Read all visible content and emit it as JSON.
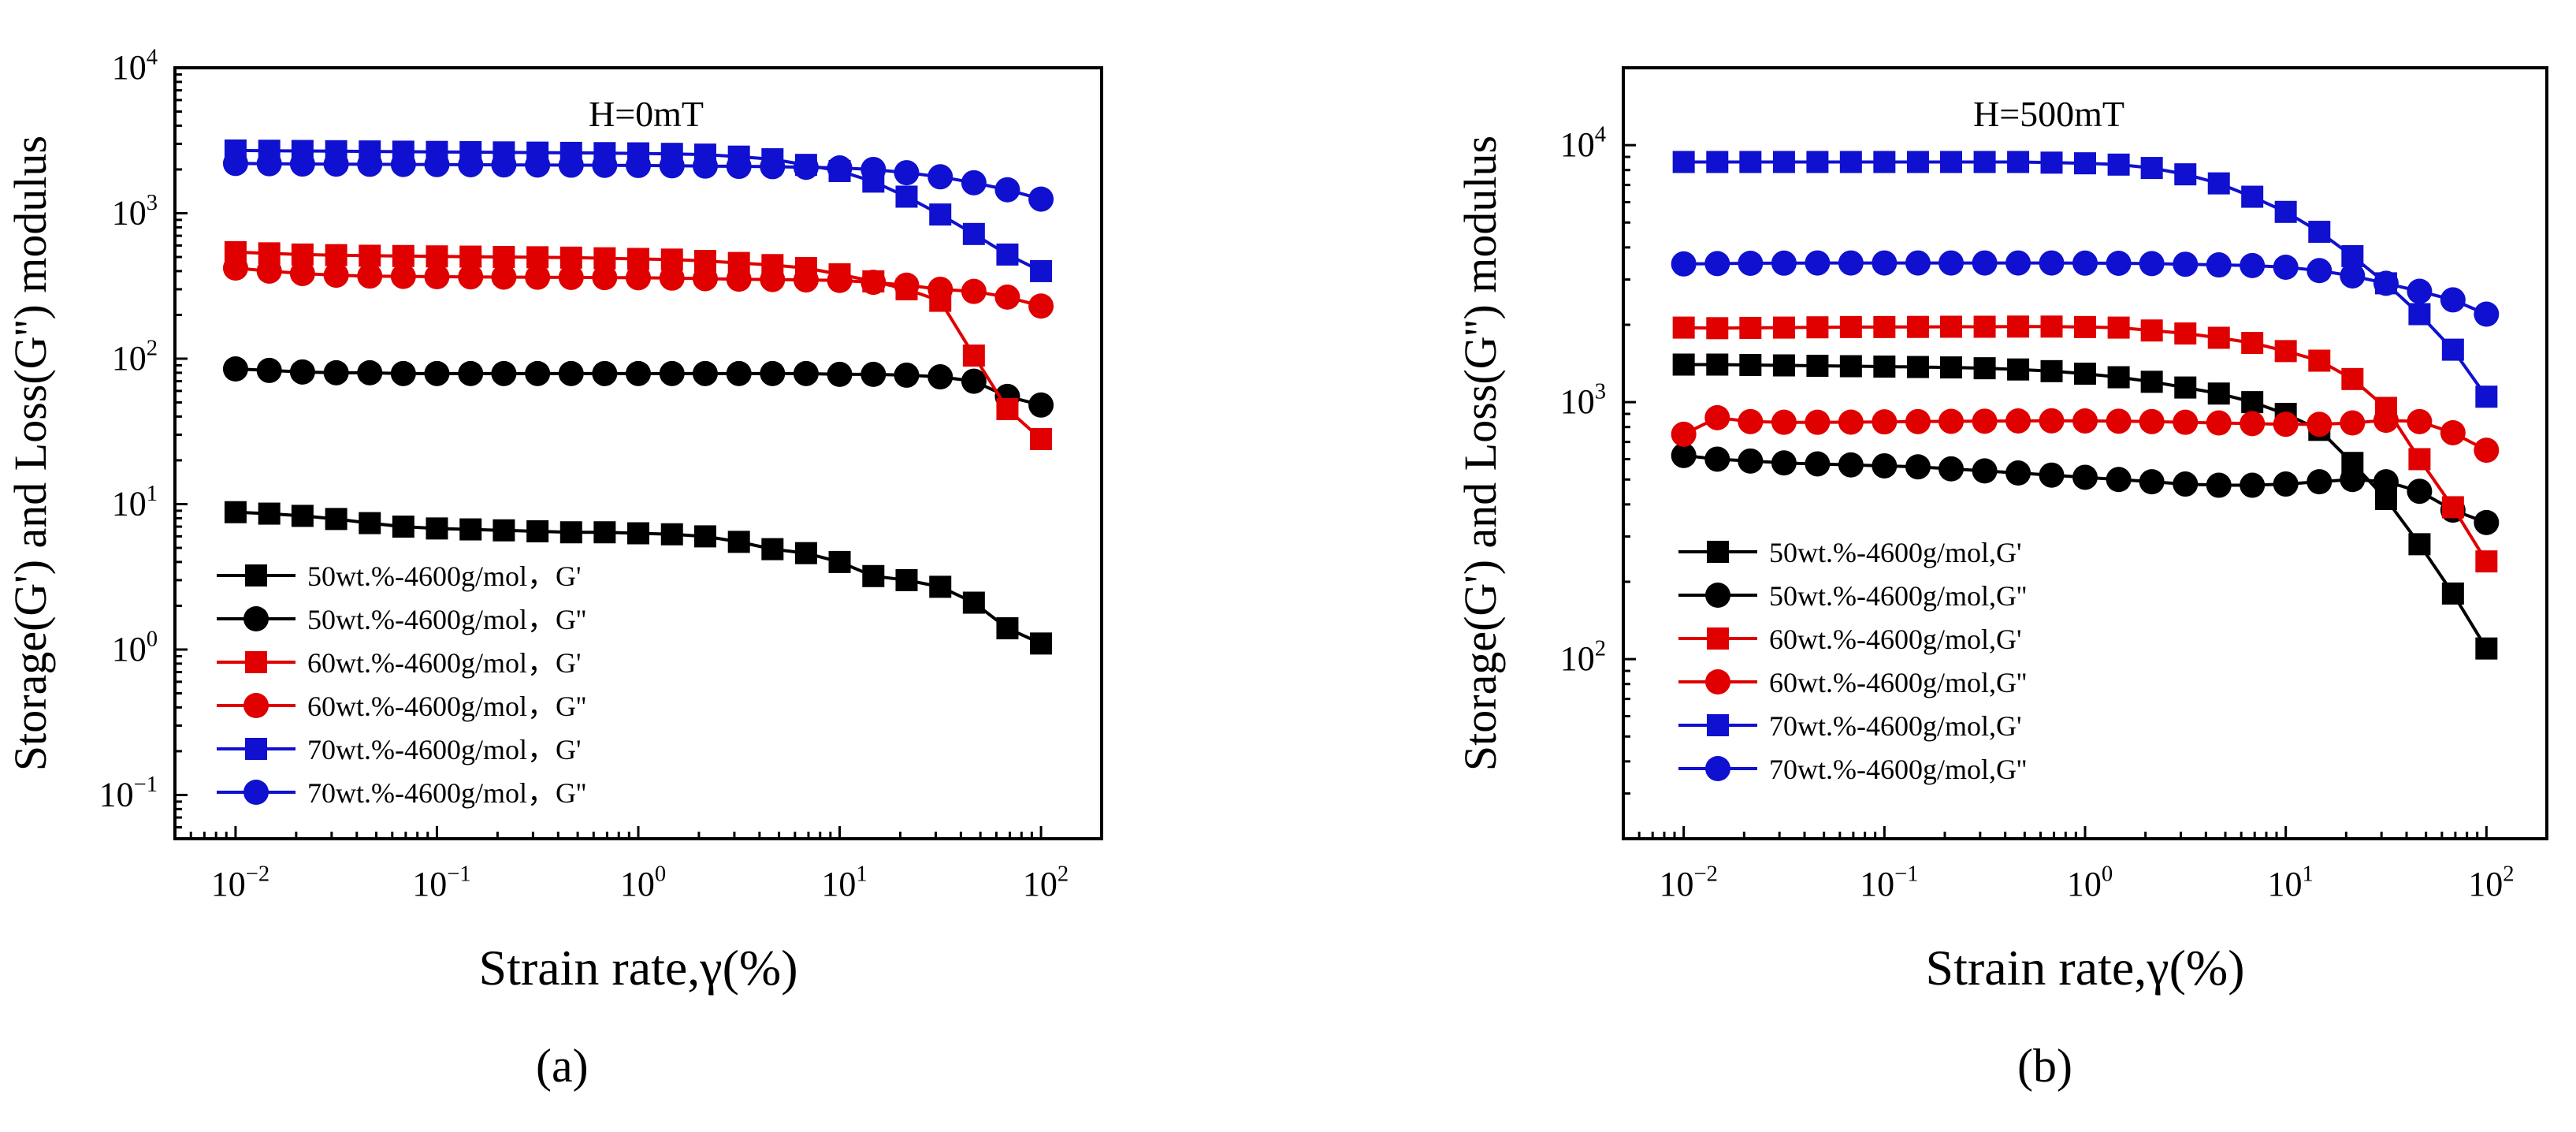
{
  "chart_data": [
    {
      "type": "line",
      "panel": "(a)",
      "title": "H=0mT",
      "xlabel": "Strain rate,γ(%)",
      "ylabel": "Storage(G') and Loss(G'') modulus",
      "xscale": "log",
      "yscale": "log",
      "xlim": [
        0.005,
        200
      ],
      "ylim": [
        0.05,
        10000
      ],
      "x_ticks": [
        0.01,
        0.1,
        1,
        10,
        100
      ],
      "x_tick_labels": [
        [
          "10",
          "−2"
        ],
        [
          "10",
          "−1"
        ],
        [
          "10",
          "0"
        ],
        [
          "10",
          "1"
        ],
        [
          "10",
          "2"
        ]
      ],
      "y_ticks": [
        0.1,
        1,
        10,
        100,
        1000,
        10000
      ],
      "y_tick_labels": [
        [
          "10",
          "−1"
        ],
        [
          "10",
          "0"
        ],
        [
          "10",
          "1"
        ],
        [
          "10",
          "2"
        ],
        [
          "10",
          "3"
        ],
        [
          "10",
          "4"
        ]
      ],
      "legend_position": "bottom-left",
      "x": [
        0.01,
        0.0147,
        0.0215,
        0.0316,
        0.0464,
        0.0681,
        0.1,
        0.147,
        0.215,
        0.316,
        0.464,
        0.681,
        1,
        1.47,
        2.15,
        3.16,
        4.64,
        6.81,
        10,
        14.7,
        21.5,
        31.6,
        46.4,
        68.1,
        100
      ],
      "series": [
        {
          "name": "50wt.%-4600g/mol，G'",
          "color": "#000000",
          "marker": "square",
          "values": [
            8.8,
            8.6,
            8.3,
            7.9,
            7.4,
            7.0,
            6.8,
            6.7,
            6.6,
            6.5,
            6.4,
            6.4,
            6.3,
            6.2,
            6.0,
            5.5,
            4.9,
            4.6,
            4.0,
            3.2,
            3.0,
            2.7,
            2.1,
            1.4,
            1.1
          ]
        },
        {
          "name": "50wt.%-4600g/mol，G''",
          "color": "#000000",
          "marker": "circle",
          "values": [
            85,
            83,
            81,
            80,
            80,
            79,
            79,
            79,
            79,
            79,
            79,
            79,
            79,
            79,
            79,
            79,
            79,
            79,
            78,
            78,
            77,
            75,
            70,
            55,
            48
          ]
        },
        {
          "name": "60wt.%-4600g/mol，G'",
          "color": "#e00000",
          "marker": "square",
          "values": [
            540,
            530,
            520,
            515,
            510,
            508,
            505,
            503,
            500,
            498,
            495,
            490,
            485,
            480,
            470,
            455,
            440,
            420,
            380,
            340,
            300,
            250,
            105,
            45,
            28
          ]
        },
        {
          "name": "60wt.%-4600g/mol，G''",
          "color": "#e00000",
          "marker": "circle",
          "values": [
            420,
            400,
            385,
            375,
            370,
            368,
            366,
            365,
            364,
            363,
            362,
            361,
            360,
            358,
            355,
            352,
            350,
            348,
            345,
            335,
            320,
            300,
            290,
            265,
            230
          ]
        },
        {
          "name": "70wt.%-4600g/mol，G'",
          "color": "#1010d0",
          "marker": "square",
          "values": [
            2700,
            2690,
            2680,
            2670,
            2660,
            2650,
            2640,
            2630,
            2620,
            2610,
            2600,
            2590,
            2580,
            2560,
            2530,
            2450,
            2350,
            2150,
            1950,
            1650,
            1300,
            980,
            720,
            520,
            400
          ]
        },
        {
          "name": "70wt.%-4600g/mol，G''",
          "color": "#1010d0",
          "marker": "circle",
          "values": [
            2200,
            2190,
            2180,
            2175,
            2170,
            2165,
            2160,
            2155,
            2150,
            2145,
            2140,
            2135,
            2130,
            2120,
            2110,
            2100,
            2090,
            2070,
            2050,
            2000,
            1900,
            1780,
            1620,
            1450,
            1250
          ]
        }
      ]
    },
    {
      "type": "line",
      "panel": "(b)",
      "title": "H=500mT",
      "xlabel": "Strain rate,γ(%)",
      "ylabel": "Storage(G') and Loss(G'') modulus",
      "xscale": "log",
      "yscale": "log",
      "xlim": [
        0.005,
        200
      ],
      "ylim": [
        20,
        20000
      ],
      "x_ticks": [
        0.01,
        0.1,
        1,
        10,
        100
      ],
      "x_tick_labels": [
        [
          "10",
          "−2"
        ],
        [
          "10",
          "−1"
        ],
        [
          "10",
          "0"
        ],
        [
          "10",
          "1"
        ],
        [
          "10",
          "2"
        ]
      ],
      "y_ticks": [
        100,
        1000,
        10000
      ],
      "y_tick_labels": [
        [
          "10",
          "2"
        ],
        [
          "10",
          "3"
        ],
        [
          "10",
          "4"
        ]
      ],
      "legend_position": "middle-left",
      "x": [
        0.01,
        0.0147,
        0.0215,
        0.0316,
        0.0464,
        0.0681,
        0.1,
        0.147,
        0.215,
        0.316,
        0.464,
        0.681,
        1,
        1.47,
        2.15,
        3.16,
        4.64,
        6.81,
        10,
        14.7,
        21.5,
        31.6,
        46.4,
        68.1,
        100
      ],
      "series": [
        {
          "name": "50wt.%-4600g/mol,G'",
          "color": "#000000",
          "marker": "square",
          "values": [
            1400,
            1400,
            1395,
            1390,
            1385,
            1380,
            1375,
            1370,
            1365,
            1355,
            1340,
            1320,
            1290,
            1250,
            1200,
            1140,
            1080,
            1000,
            900,
            780,
            580,
            420,
            280,
            180,
            110
          ]
        },
        {
          "name": "50wt.%-4600g/mol,G''",
          "color": "#000000",
          "marker": "circle",
          "values": [
            620,
            600,
            590,
            580,
            575,
            570,
            565,
            560,
            550,
            540,
            530,
            520,
            510,
            500,
            490,
            480,
            475,
            475,
            480,
            490,
            500,
            490,
            450,
            380,
            340
          ]
        },
        {
          "name": "60wt.%-4600g/mol,G'",
          "color": "#e00000",
          "marker": "square",
          "values": [
            1950,
            1940,
            1945,
            1950,
            1955,
            1960,
            1960,
            1962,
            1965,
            1965,
            1968,
            1968,
            1960,
            1950,
            1900,
            1850,
            1780,
            1700,
            1580,
            1450,
            1230,
            950,
            600,
            390,
            240
          ]
        },
        {
          "name": "60wt.%-4600g/mol,G''",
          "color": "#e00000",
          "marker": "circle",
          "values": [
            750,
            870,
            840,
            835,
            835,
            836,
            838,
            840,
            842,
            843,
            845,
            846,
            845,
            843,
            840,
            835,
            830,
            825,
            820,
            820,
            830,
            850,
            840,
            760,
            650
          ]
        },
        {
          "name": "70wt.%-4600g/mol,G'",
          "color": "#1010d0",
          "marker": "square",
          "values": [
            8600,
            8600,
            8600,
            8600,
            8600,
            8600,
            8600,
            8600,
            8600,
            8600,
            8600,
            8550,
            8500,
            8400,
            8150,
            7700,
            7100,
            6300,
            5500,
            4600,
            3700,
            2900,
            2200,
            1600,
            1050
          ]
        },
        {
          "name": "70wt.%-4600g/mol,G''",
          "color": "#1010d0",
          "marker": "circle",
          "values": [
            3450,
            3460,
            3470,
            3475,
            3480,
            3480,
            3480,
            3480,
            3480,
            3480,
            3480,
            3480,
            3475,
            3470,
            3460,
            3440,
            3420,
            3400,
            3350,
            3250,
            3100,
            2900,
            2700,
            2500,
            2200
          ]
        }
      ]
    }
  ]
}
